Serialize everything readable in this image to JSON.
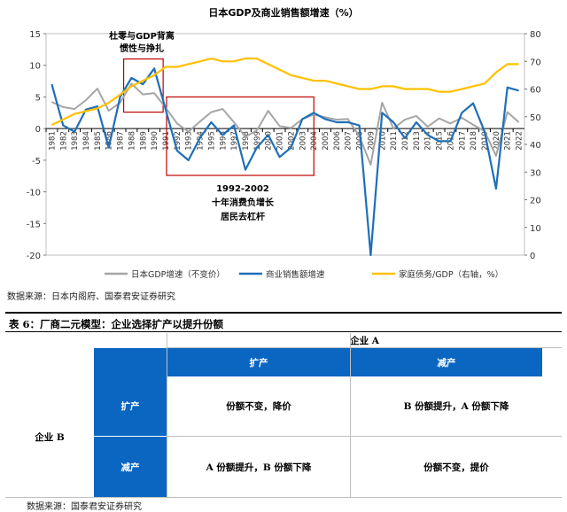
{
  "chart_data": {
    "type": "line",
    "title": "日本GDP及商业销售额增速（%）",
    "x": [
      "1981",
      "1982",
      "1983",
      "1984",
      "1985",
      "1986",
      "1987",
      "1988",
      "1989",
      "1990",
      "1991",
      "1992",
      "1993",
      "1994",
      "1995",
      "1996",
      "1997",
      "1998",
      "1999",
      "2000",
      "2001",
      "2002",
      "2003",
      "2004",
      "2005",
      "2006",
      "2007",
      "2008",
      "2009",
      "2010",
      "2011",
      "2012",
      "2013",
      "2014",
      "2015",
      "2016",
      "2017",
      "2018",
      "2019",
      "2020",
      "2021",
      "2022"
    ],
    "left_axis": {
      "ticks": [
        "15",
        "10",
        "5",
        "0",
        "-5",
        "-10",
        "-15",
        "-20"
      ],
      "ylim": [
        -20,
        15
      ]
    },
    "right_axis": {
      "ticks": [
        "80",
        "70",
        "60",
        "50",
        "40",
        "30",
        "20",
        "10",
        "0"
      ],
      "ylim": [
        0,
        80
      ]
    },
    "series": [
      {
        "name": "日本GDP增速（不变价）",
        "axis": "left",
        "color": "#a6a6a6",
        "values": [
          4.2,
          3.4,
          3.1,
          4.5,
          6.3,
          2.8,
          4.1,
          7.1,
          5.4,
          5.6,
          3.3,
          0.8,
          -0.5,
          1.1,
          2.6,
          3.1,
          1.0,
          -1.3,
          -0.3,
          2.8,
          0.4,
          0.1,
          1.5,
          2.2,
          1.8,
          1.4,
          1.5,
          -1.2,
          -5.7,
          4.1,
          0.0,
          1.4,
          2.0,
          0.3,
          1.6,
          0.8,
          1.7,
          0.6,
          -0.4,
          -4.3,
          2.6,
          1.0
        ]
      },
      {
        "name": "商业销售额增速",
        "axis": "left",
        "color": "#1f6fb8",
        "values": [
          7.0,
          0.5,
          -0.5,
          3.0,
          3.5,
          -3.0,
          5.0,
          8.0,
          7.0,
          9.5,
          3.0,
          -3.5,
          -5.0,
          -1.5,
          1.0,
          -1.0,
          0.5,
          -6.5,
          -3.0,
          -1.0,
          -4.5,
          -3.0,
          1.5,
          2.5,
          1.5,
          1.0,
          1.0,
          0.5,
          -20.0,
          2.5,
          1.0,
          -1.5,
          1.0,
          -1.0,
          -2.0,
          -2.0,
          2.5,
          4.0,
          -0.5,
          -9.5,
          6.5,
          6.0
        ]
      },
      {
        "name": "家庭债务/GDP（右轴，%）",
        "axis": "right",
        "color": "#ffc000",
        "values": [
          47,
          49,
          51,
          52,
          53,
          55,
          58,
          61,
          63,
          65,
          68,
          68,
          69,
          70,
          71,
          70,
          70,
          71,
          71,
          69,
          67,
          65,
          64,
          63,
          63,
          62,
          61,
          60,
          60,
          61,
          61,
          60,
          60,
          60,
          59,
          59,
          60,
          61,
          62,
          66,
          69,
          69
        ]
      }
    ],
    "annotations": [
      {
        "lines": [
          "杜零与GDP背离",
          "惯性与挣扎"
        ]
      },
      {
        "lines": [
          "1992-2002",
          "十年消费负增长",
          "居民去杠杆"
        ]
      }
    ],
    "legend_position": "bottom"
  },
  "chart_source": "数据来源：日本内阁府、国泰君安证券研究",
  "table": {
    "title": "表 6：厂商二元模型：企业选择扩产以提升份额",
    "company_a": "企业 A",
    "company_b": "企业 B",
    "col_headers": [
      "扩产",
      "减产"
    ],
    "row_headers": [
      "扩产",
      "减产"
    ],
    "cells": [
      [
        "份额不变，降价",
        "B 份额提升，A 份额下降"
      ],
      [
        "A 份额提升，B 份额下降",
        "份额不变，提价"
      ]
    ],
    "source": "数据来源：国泰君安证券研究"
  }
}
